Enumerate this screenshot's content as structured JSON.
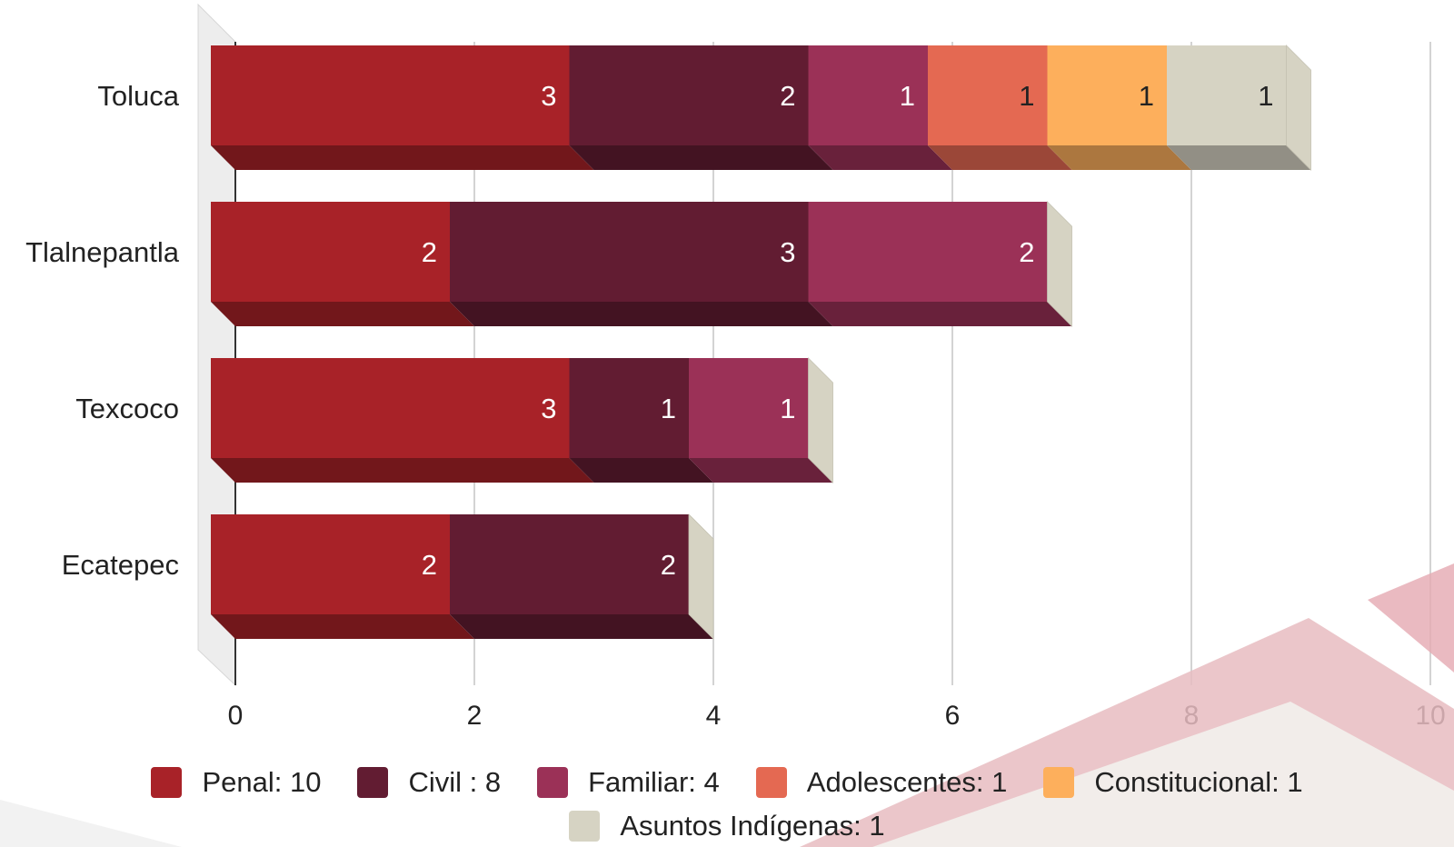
{
  "chart_data": {
    "type": "bar",
    "orientation": "horizontal",
    "stacked": true,
    "three_d": true,
    "categories": [
      "Toluca",
      "Tlalnepantla",
      "Texcoco",
      "Ecatepec"
    ],
    "series": [
      {
        "name": "Penal",
        "legend": "Penal: 10",
        "color": "#a82228",
        "values": [
          3,
          2,
          3,
          2
        ]
      },
      {
        "name": "Civil",
        "legend": "Civil : 8",
        "color": "#621c32",
        "values": [
          2,
          3,
          1,
          2
        ]
      },
      {
        "name": "Familiar",
        "legend": "Familiar: 4",
        "color": "#9b3157",
        "values": [
          1,
          2,
          1,
          0
        ]
      },
      {
        "name": "Adolescentes",
        "legend": "Adolescentes: 1",
        "color": "#e46952",
        "values": [
          1,
          0,
          0,
          0
        ]
      },
      {
        "name": "Constitucional",
        "legend": "Constitucional: 1",
        "color": "#fdaf5c",
        "values": [
          1,
          0,
          0,
          0
        ]
      },
      {
        "name": "Asuntos Indígenas",
        "legend": "Asuntos Indígenas: 1",
        "color": "#d6d3c3",
        "values": [
          1,
          0,
          0,
          0
        ]
      }
    ],
    "x_ticks": [
      0,
      2,
      4,
      6,
      8,
      10
    ],
    "xlim": [
      0,
      10
    ],
    "grid": true,
    "legend_position": "bottom",
    "data_labels": true
  }
}
